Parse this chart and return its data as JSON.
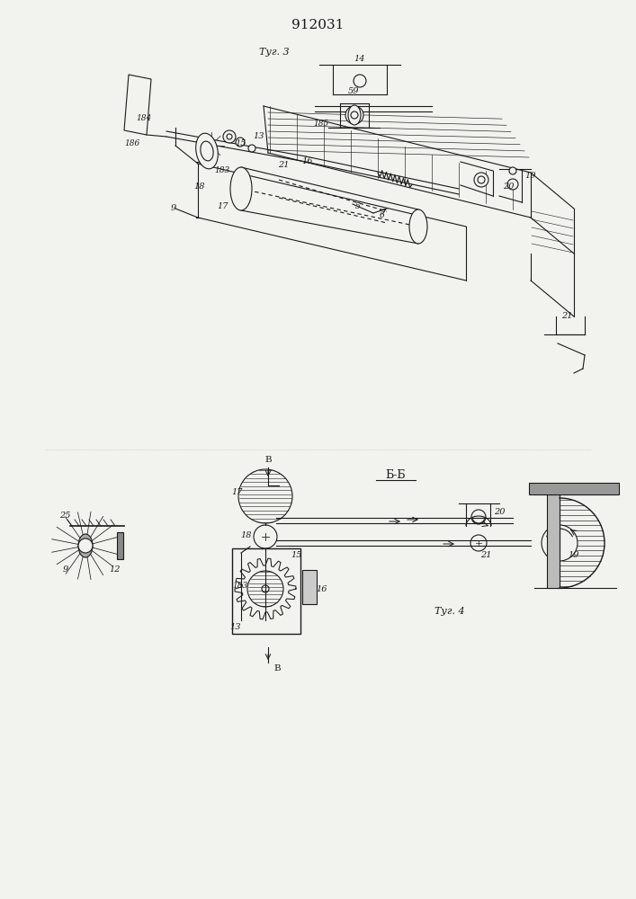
{
  "title": "912031",
  "bg_color": "#f2f2ee",
  "line_color": "#1a1a1a",
  "fig1_caption": "Τуг. 3",
  "fig2_caption": "Τуг. 4",
  "fig2_section": "Б-Б"
}
